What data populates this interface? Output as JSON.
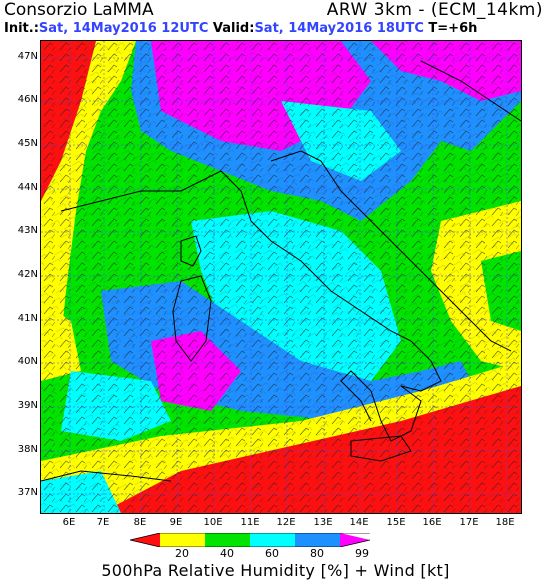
{
  "header": {
    "brand": "Consorzio LaMMA",
    "model": "ARW 3km - (ECM_14km)",
    "init_label": "Init.:",
    "init_value": "Sat, 14May2016 12UTC",
    "valid_label": "Valid:",
    "valid_value": "Sat, 14May2016 18UTC",
    "lead": "T=+6h"
  },
  "axes": {
    "lat_labels": [
      "47N",
      "46N",
      "45N",
      "44N",
      "43N",
      "42N",
      "41N",
      "40N",
      "39N",
      "38N",
      "37N"
    ],
    "lon_labels": [
      "6E",
      "7E",
      "8E",
      "9E",
      "10E",
      "11E",
      "12E",
      "13E",
      "14E",
      "15E",
      "16E",
      "17E",
      "18E"
    ]
  },
  "colorbar": {
    "ticks": [
      "20",
      "40",
      "60",
      "80",
      "99"
    ],
    "colors": [
      "#ff1010",
      "#ffff00",
      "#00e400",
      "#00ffff",
      "#1e90ff",
      "#ff00ff"
    ]
  },
  "caption": "500hPa Relative Humidity [%] + Wind [kt]",
  "colors": {
    "title_blue": "#3344ff",
    "border_black": "#000000"
  }
}
